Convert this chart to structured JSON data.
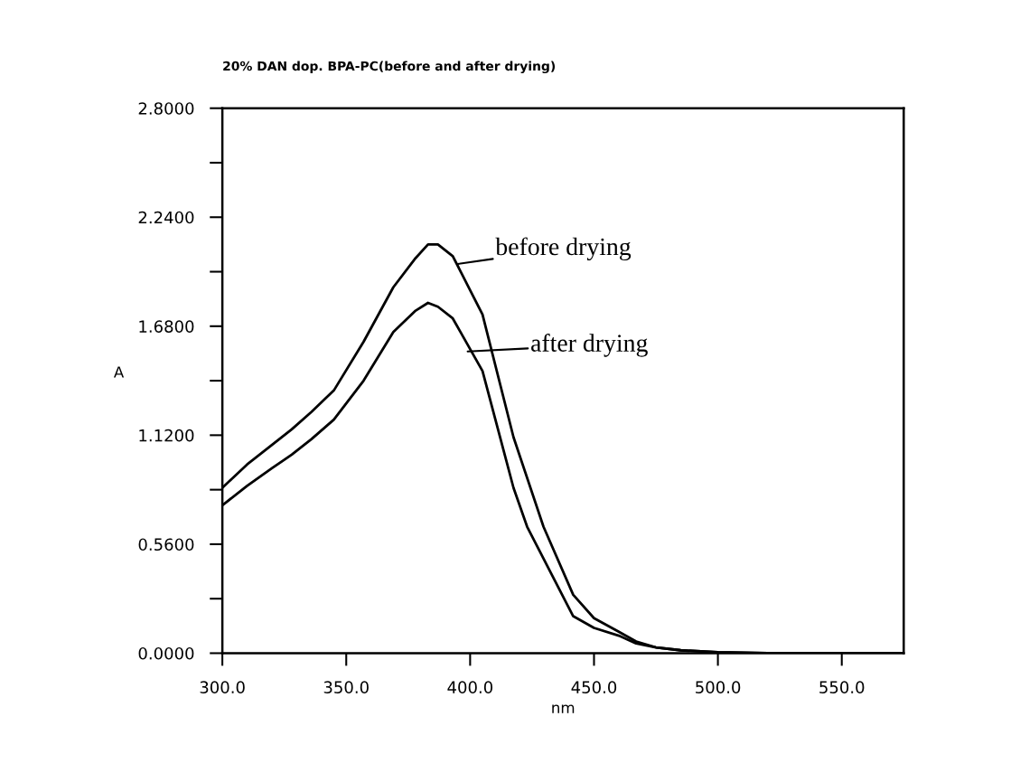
{
  "chart_data": {
    "type": "line",
    "title": "20% DAN dop. BPA-PC(before and after drying)",
    "xlabel": "nm",
    "ylabel": "A",
    "xlim": [
      300,
      575
    ],
    "xticks": [
      {
        "value": 300,
        "label": "300.0"
      },
      {
        "value": 350,
        "label": "350.0"
      },
      {
        "value": 400,
        "label": "400.0"
      },
      {
        "value": 450,
        "label": "450.0"
      },
      {
        "value": 500,
        "label": "500.0"
      },
      {
        "value": 550,
        "label": "550.0"
      }
    ],
    "ylim": [
      0,
      2.8
    ],
    "yticks": [
      {
        "value": 0,
        "label": "0.0000"
      },
      {
        "value": 0.28,
        "label": null
      },
      {
        "value": 0.56,
        "label": "0.5600"
      },
      {
        "value": 0.84,
        "label": null
      },
      {
        "value": 1.12,
        "label": "1.1200"
      },
      {
        "value": 1.4,
        "label": null
      },
      {
        "value": 1.68,
        "label": "1.6800"
      },
      {
        "value": 1.96,
        "label": null
      },
      {
        "value": 2.24,
        "label": "2.2400"
      },
      {
        "value": 2.52,
        "label": null
      },
      {
        "value": 2.8,
        "label": "2.8000"
      }
    ],
    "grid": false,
    "legend": false,
    "marker": "none",
    "line_style": "solid",
    "series": [
      {
        "color": "#000000",
        "x": [
          300,
          310,
          320,
          328,
          336,
          345,
          357,
          369,
          378,
          383,
          387,
          393,
          405,
          417.5,
          429.6,
          441.6,
          450,
          460,
          467,
          475,
          485,
          500,
          520,
          550,
          575
        ],
        "values": [
          0.85,
          0.97,
          1.07,
          1.15,
          1.24,
          1.35,
          1.6,
          1.88,
          2.03,
          2.1,
          2.1,
          2.04,
          1.74,
          1.11,
          0.65,
          0.3,
          0.18,
          0.11,
          0.06,
          0.03,
          0.015,
          0.005,
          0.0,
          0.0,
          0.0
        ]
      },
      {
        "color": "#000000",
        "x": [
          300,
          310,
          320,
          328,
          336,
          345,
          357,
          369,
          378,
          383,
          387,
          393,
          405,
          417.5,
          423,
          441.6,
          450,
          460,
          467,
          475,
          485,
          500,
          520,
          550,
          575
        ],
        "values": [
          0.76,
          0.86,
          0.95,
          1.02,
          1.1,
          1.2,
          1.4,
          1.65,
          1.76,
          1.8,
          1.78,
          1.72,
          1.45,
          0.85,
          0.65,
          0.19,
          0.13,
          0.09,
          0.05,
          0.03,
          0.015,
          0.005,
          0.0,
          0.0,
          0.0
        ]
      }
    ],
    "annotations": [
      {
        "text": "before drying",
        "x": 395,
        "y": 2.0
      },
      {
        "text": "after drying",
        "x": 399,
        "y": 1.55
      }
    ]
  }
}
